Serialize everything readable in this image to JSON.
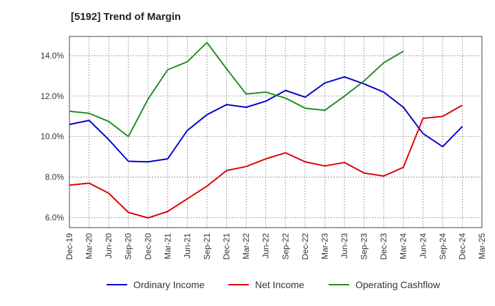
{
  "chart_data": {
    "type": "line",
    "title": "[5192]  Trend of Margin",
    "xlabel": "",
    "ylabel": "",
    "categories": [
      "Dec-19",
      "Mar-20",
      "Jun-20",
      "Sep-20",
      "Dec-20",
      "Mar-21",
      "Jun-21",
      "Sep-21",
      "Dec-21",
      "Mar-22",
      "Jun-22",
      "Sep-22",
      "Dec-22",
      "Mar-23",
      "Jun-23",
      "Sep-23",
      "Dec-23",
      "Mar-24",
      "Jun-24",
      "Sep-24",
      "Dec-24",
      "Mar-25"
    ],
    "y_ticks": [
      "6.0%",
      "8.0%",
      "10.0%",
      "12.0%",
      "14.0%"
    ],
    "y_tick_values": [
      6,
      8,
      10,
      12,
      14
    ],
    "ylim": [
      5.5,
      14.95
    ],
    "grid": true,
    "legend_position": "bottom",
    "series": [
      {
        "name": "Ordinary Income",
        "color": "#0000cc",
        "values": [
          10.6,
          10.8,
          9.85,
          8.78,
          8.75,
          8.9,
          10.3,
          11.08,
          11.58,
          11.45,
          11.75,
          12.28,
          11.95,
          12.65,
          12.95,
          12.6,
          12.2,
          11.45,
          10.15,
          9.5,
          10.5,
          null
        ]
      },
      {
        "name": "Net Income",
        "color": "#dd0000",
        "values": [
          7.6,
          7.7,
          7.2,
          6.25,
          5.98,
          6.3,
          6.92,
          7.55,
          8.32,
          8.52,
          8.9,
          9.2,
          8.75,
          8.55,
          8.72,
          8.2,
          8.05,
          8.48,
          10.9,
          11.0,
          11.55,
          null
        ]
      },
      {
        "name": "Operating Cashflow",
        "color": "#228b22",
        "values": [
          11.25,
          11.15,
          10.75,
          10.0,
          11.85,
          13.3,
          13.7,
          14.65,
          13.35,
          12.1,
          12.2,
          11.9,
          11.4,
          11.3,
          12.0,
          12.75,
          13.65,
          14.22,
          null,
          null,
          null,
          null
        ]
      }
    ]
  }
}
